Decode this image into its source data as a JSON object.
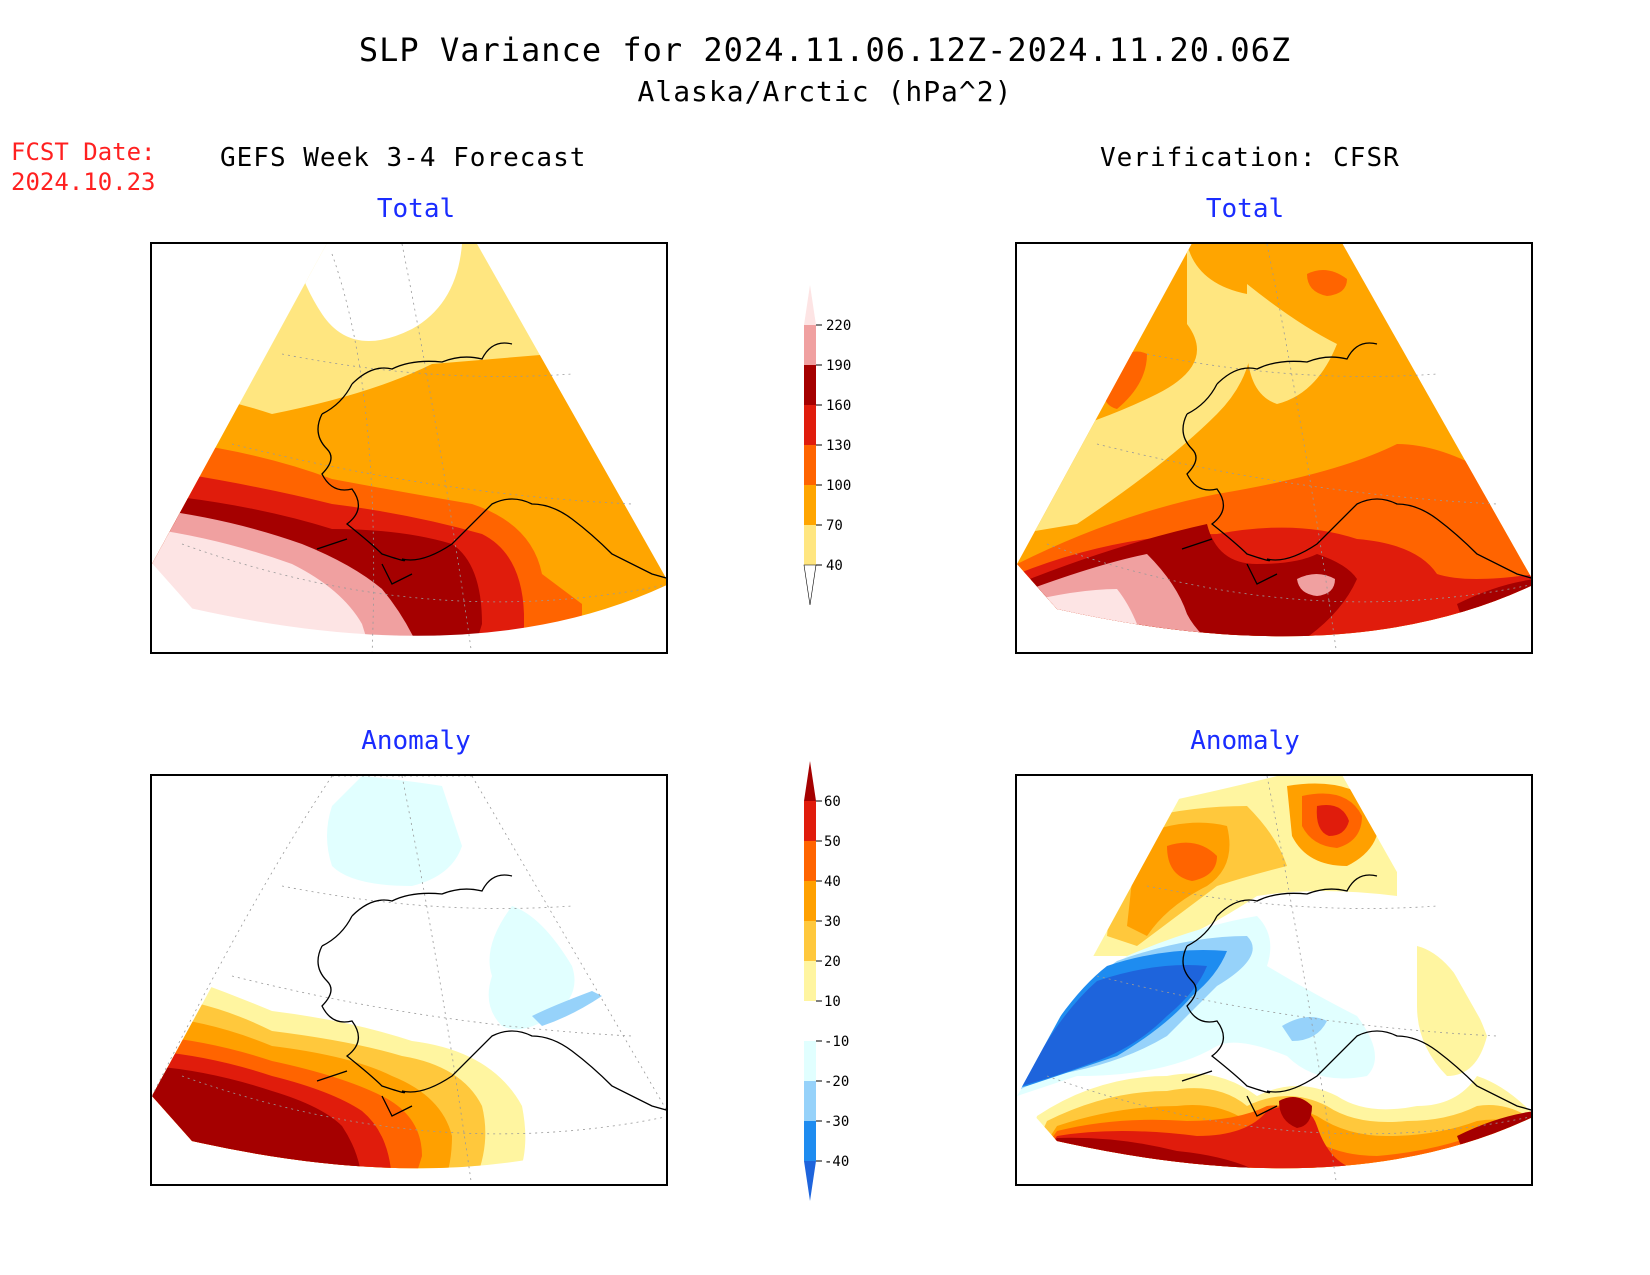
{
  "title": {
    "line1": "SLP Variance for 2024.11.06.12Z-2024.11.20.06Z",
    "line2": "Alaska/Arctic (hPa^2)"
  },
  "forecast": {
    "label": "FCST Date:",
    "date": "2024.10.23"
  },
  "columns": {
    "left_header": "GEFS Week 3-4 Forecast",
    "right_header": "Verification: CFSR"
  },
  "panels": {
    "top_left_title": "Total",
    "top_right_title": "Total",
    "bottom_left_title": "Anomaly",
    "bottom_right_title": "Anomaly"
  },
  "colorbars": {
    "total": {
      "labels": [
        "40",
        "70",
        "100",
        "130",
        "160",
        "190",
        "220"
      ],
      "colors": [
        "#ffe680",
        "#ffa500",
        "#ff6400",
        "#e01c0c",
        "#a50000",
        "#f0a0a0",
        "#fde4e4"
      ]
    },
    "anomaly": {
      "labels": [
        "-40",
        "-30",
        "-20",
        "-10",
        "10",
        "20",
        "30",
        "40",
        "50",
        "60"
      ],
      "colors": [
        "#1e64dc",
        "#1e8cf0",
        "#96d2fa",
        "#e1ffff",
        "#ffffff",
        "#fff5a0",
        "#ffc83c",
        "#ffa000",
        "#ff6400",
        "#e01c0c",
        "#a50000"
      ]
    }
  },
  "map_colors": {
    "total": [
      "#ffe680",
      "#ffa500",
      "#ff6400",
      "#e01c0c",
      "#a50000",
      "#f0a0a0",
      "#fde4e4"
    ],
    "anomaly": [
      "#1e64dc",
      "#1e8cf0",
      "#96d2fa",
      "#e1ffff",
      "#ffffff",
      "#fff5a0",
      "#ffc83c",
      "#ffa000",
      "#ff6400",
      "#e01c0c",
      "#a50000"
    ]
  }
}
